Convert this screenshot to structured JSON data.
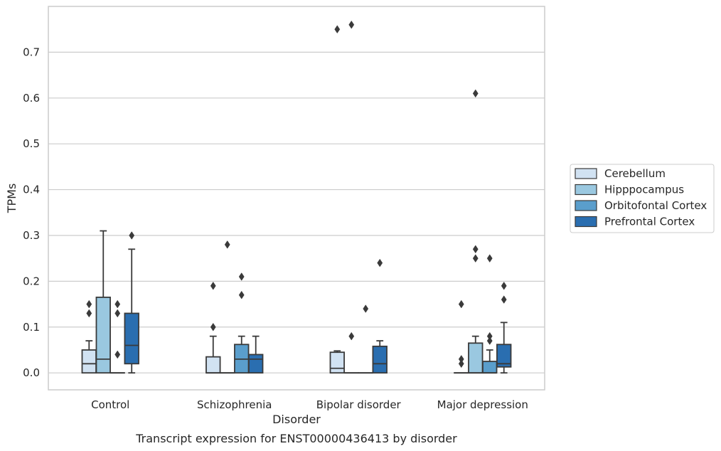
{
  "chart_data": {
    "type": "box",
    "caption": "Transcript expression for ENST00000436413 by disorder",
    "xlabel": "Disorder",
    "ylabel": "TPMs",
    "ylim": [
      -0.037,
      0.8
    ],
    "yticks": [
      0.0,
      0.1,
      0.2,
      0.3,
      0.4,
      0.5,
      0.6,
      0.7
    ],
    "ytick_labels": [
      "0.0",
      "0.1",
      "0.2",
      "0.3",
      "0.4",
      "0.5",
      "0.6",
      "0.7"
    ],
    "grid": true,
    "legend_position": "right",
    "categories": [
      "Control",
      "Schizophrenia",
      "Bipolar disorder",
      "Major depression"
    ],
    "series": [
      {
        "name": "Cerebellum",
        "color": "#d1e2f2",
        "boxes": [
          {
            "whisker_low": 0.0,
            "q1": 0.0,
            "median": 0.02,
            "q3": 0.05,
            "whisker_high": 0.07,
            "outliers": [
              0.13,
              0.15
            ]
          },
          {
            "whisker_low": 0.0,
            "q1": 0.0,
            "median": 0.0,
            "q3": 0.035,
            "whisker_high": 0.08,
            "outliers": [
              0.1,
              0.19
            ]
          },
          {
            "whisker_low": 0.0,
            "q1": 0.0,
            "median": 0.01,
            "q3": 0.045,
            "whisker_high": 0.048,
            "outliers": [
              0.75
            ]
          },
          {
            "whisker_low": 0.0,
            "q1": 0.0,
            "median": 0.0,
            "q3": 0.0,
            "whisker_high": 0.0,
            "outliers": [
              0.02,
              0.03,
              0.15
            ]
          }
        ]
      },
      {
        "name": "Hipppocampus",
        "color": "#9ac8e0",
        "boxes": [
          {
            "whisker_low": 0.0,
            "q1": 0.0,
            "median": 0.03,
            "q3": 0.165,
            "whisker_high": 0.31,
            "outliers": []
          },
          {
            "whisker_low": 0.0,
            "q1": 0.0,
            "median": 0.0,
            "q3": 0.0,
            "whisker_high": 0.0,
            "outliers": [
              0.28
            ]
          },
          {
            "whisker_low": 0.0,
            "q1": 0.0,
            "median": 0.0,
            "q3": 0.0,
            "whisker_high": 0.0,
            "outliers": [
              0.08,
              0.76
            ]
          },
          {
            "whisker_low": 0.0,
            "q1": 0.0,
            "median": 0.0,
            "q3": 0.065,
            "whisker_high": 0.08,
            "outliers": [
              0.25,
              0.27,
              0.61
            ]
          }
        ]
      },
      {
        "name": "Orbitofontal Cortex",
        "color": "#5a9ecc",
        "boxes": [
          {
            "whisker_low": 0.0,
            "q1": 0.0,
            "median": 0.0,
            "q3": 0.0,
            "whisker_high": 0.0,
            "outliers": [
              0.04,
              0.13,
              0.15
            ]
          },
          {
            "whisker_low": 0.0,
            "q1": 0.0,
            "median": 0.03,
            "q3": 0.062,
            "whisker_high": 0.08,
            "outliers": [
              0.17,
              0.21
            ]
          },
          {
            "whisker_low": 0.0,
            "q1": 0.0,
            "median": 0.0,
            "q3": 0.0,
            "whisker_high": 0.0,
            "outliers": [
              0.14
            ]
          },
          {
            "whisker_low": 0.0,
            "q1": 0.0,
            "median": 0.0,
            "q3": 0.025,
            "whisker_high": 0.05,
            "outliers": [
              0.07,
              0.08,
              0.25
            ]
          }
        ]
      },
      {
        "name": "Prefrontal Cortex",
        "color": "#2a6eb0",
        "boxes": [
          {
            "whisker_low": 0.0,
            "q1": 0.02,
            "median": 0.06,
            "q3": 0.13,
            "whisker_high": 0.27,
            "outliers": [
              0.3
            ]
          },
          {
            "whisker_low": 0.0,
            "q1": 0.0,
            "median": 0.03,
            "q3": 0.04,
            "whisker_high": 0.08,
            "outliers": []
          },
          {
            "whisker_low": 0.0,
            "q1": 0.0,
            "median": 0.02,
            "q3": 0.058,
            "whisker_high": 0.07,
            "outliers": [
              0.24
            ]
          },
          {
            "whisker_low": 0.0,
            "q1": 0.013,
            "median": 0.02,
            "q3": 0.062,
            "whisker_high": 0.11,
            "outliers": [
              0.16,
              0.19
            ]
          }
        ]
      }
    ]
  }
}
